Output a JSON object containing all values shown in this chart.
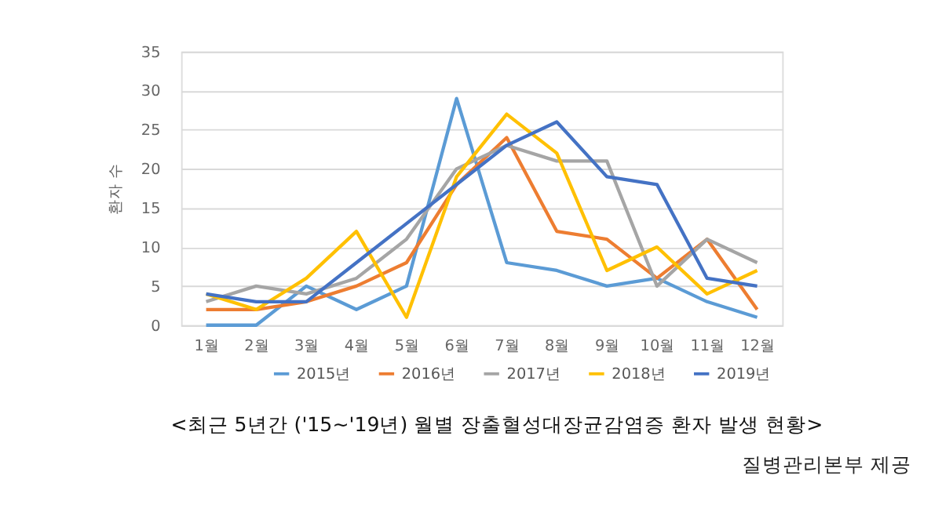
{
  "chart_data": {
    "type": "line",
    "title": "<최근 5년간 ('15~'19년) 월별 장출혈성대장균감염증 환자 발생 현황>",
    "ylabel": "환자 수",
    "categories": [
      "1월",
      "2월",
      "3월",
      "4월",
      "5월",
      "6월",
      "7월",
      "8월",
      "9월",
      "10월",
      "11월",
      "12월"
    ],
    "series": [
      {
        "name": "2015년",
        "color": "#5b9bd5",
        "values": [
          0,
          0,
          5,
          2,
          5,
          29,
          8,
          7,
          5,
          6,
          3,
          1
        ]
      },
      {
        "name": "2016년",
        "color": "#ed7d31",
        "values": [
          2,
          2,
          3,
          5,
          8,
          18,
          24,
          12,
          11,
          6,
          11,
          2
        ]
      },
      {
        "name": "2017년",
        "color": "#a5a5a5",
        "values": [
          3,
          5,
          4,
          6,
          11,
          20,
          23,
          21,
          21,
          5,
          11,
          8
        ]
      },
      {
        "name": "2018년",
        "color": "#ffc000",
        "values": [
          4,
          2,
          6,
          12,
          1,
          19,
          27,
          22,
          7,
          10,
          4,
          7
        ]
      },
      {
        "name": "2019년",
        "color": "#4472c4",
        "values": [
          4,
          3,
          3,
          8,
          13,
          18,
          23,
          26,
          19,
          18,
          6,
          5
        ]
      }
    ],
    "ylim": [
      0,
      35
    ],
    "yticks": [
      0,
      5,
      10,
      15,
      20,
      25,
      30,
      35
    ],
    "grid": "y",
    "legend": "bottom",
    "marker": "none",
    "line_style": "solid",
    "annotations": [
      "질병관리본부 제공"
    ]
  }
}
